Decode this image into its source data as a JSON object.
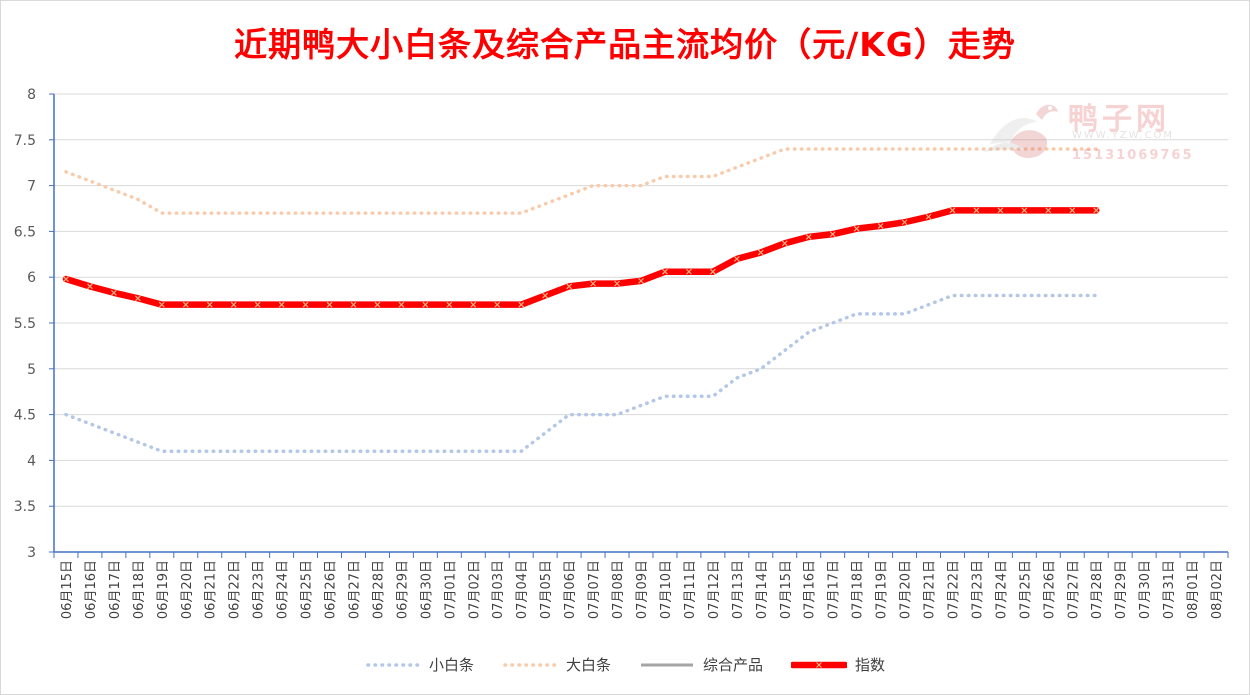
{
  "chart_data": {
    "type": "line",
    "title": "近期鸭大小白条及综合产品主流均价（元/KG）走势",
    "ylim": [
      3,
      8
    ],
    "yticks": [
      3,
      3.5,
      4,
      4.5,
      5,
      5.5,
      6,
      6.5,
      7,
      7.5,
      8
    ],
    "ytick_labels": [
      "3",
      "3.5",
      "4",
      "4.5",
      "5",
      "5.5",
      "6",
      "6.5",
      "7",
      "7.5",
      "8"
    ],
    "grid": true,
    "legend_position": "bottom",
    "categories": [
      "06月15日",
      "06月16日",
      "06月17日",
      "06月18日",
      "06月19日",
      "06月20日",
      "06月21日",
      "06月22日",
      "06月23日",
      "06月24日",
      "06月25日",
      "06月26日",
      "06月27日",
      "06月28日",
      "06月29日",
      "06月30日",
      "07月01日",
      "07月02日",
      "07月03日",
      "07月04日",
      "07月05日",
      "07月06日",
      "07月07日",
      "07月08日",
      "07月09日",
      "07月10日",
      "07月11日",
      "07月12日",
      "07月13日",
      "07月14日",
      "07月15日",
      "07月16日",
      "07月17日",
      "07月18日",
      "07月19日",
      "07月20日",
      "07月21日",
      "07月22日",
      "07月23日",
      "07月24日",
      "07月25日",
      "07月26日",
      "07月27日",
      "07月28日",
      "07月29日",
      "07月30日",
      "07月31日",
      "08月01日",
      "08月02日"
    ],
    "series": [
      {
        "name": "小白条",
        "color": "#b4c7e7",
        "style": "dotted",
        "values": [
          4.5,
          4.4,
          4.3,
          4.2,
          4.1,
          4.1,
          4.1,
          4.1,
          4.1,
          4.1,
          4.1,
          4.1,
          4.1,
          4.1,
          4.1,
          4.1,
          4.1,
          4.1,
          4.1,
          4.1,
          4.3,
          4.5,
          4.5,
          4.5,
          4.6,
          4.7,
          4.7,
          4.7,
          4.9,
          5.0,
          5.2,
          5.4,
          5.5,
          5.6,
          5.6,
          5.6,
          5.7,
          5.8,
          5.8,
          5.8,
          5.8,
          5.8,
          5.8,
          5.8,
          null,
          null,
          null,
          null,
          null
        ]
      },
      {
        "name": "大白条",
        "color": "#f8cbad",
        "style": "dotted",
        "values": [
          7.15,
          7.05,
          6.95,
          6.85,
          6.7,
          6.7,
          6.7,
          6.7,
          6.7,
          6.7,
          6.7,
          6.7,
          6.7,
          6.7,
          6.7,
          6.7,
          6.7,
          6.7,
          6.7,
          6.7,
          6.8,
          6.9,
          7.0,
          7.0,
          7.0,
          7.1,
          7.1,
          7.1,
          7.2,
          7.3,
          7.4,
          7.4,
          7.4,
          7.4,
          7.4,
          7.4,
          7.4,
          7.4,
          7.4,
          7.4,
          7.4,
          7.4,
          7.4,
          7.4,
          null,
          null,
          null,
          null,
          null
        ]
      },
      {
        "name": "综合产品",
        "color": "#a5a5a5",
        "style": "solid",
        "values": [
          null,
          null,
          null,
          null,
          null,
          null,
          null,
          null,
          null,
          null,
          null,
          null,
          null,
          null,
          null,
          null,
          null,
          null,
          null,
          null,
          null,
          null,
          null,
          null,
          null,
          null,
          null,
          null,
          null,
          null,
          null,
          null,
          null,
          null,
          null,
          null,
          null,
          null,
          null,
          null,
          null,
          null,
          null,
          null,
          null,
          null,
          null,
          null,
          null
        ]
      },
      {
        "name": "指数",
        "color": "#ff0000",
        "style": "thick-marker",
        "values": [
          5.98,
          5.9,
          5.83,
          5.77,
          5.7,
          5.7,
          5.7,
          5.7,
          5.7,
          5.7,
          5.7,
          5.7,
          5.7,
          5.7,
          5.7,
          5.7,
          5.7,
          5.7,
          5.7,
          5.7,
          5.8,
          5.9,
          5.93,
          5.93,
          5.96,
          6.06,
          6.06,
          6.06,
          6.2,
          6.27,
          6.37,
          6.44,
          6.47,
          6.53,
          6.56,
          6.6,
          6.66,
          6.73,
          6.73,
          6.73,
          6.73,
          6.73,
          6.73,
          6.73,
          null,
          null,
          null,
          null,
          null
        ]
      }
    ]
  },
  "watermark": {
    "brand": "鸭子网",
    "phone": "15131069765",
    "icon": "duck-logo-icon"
  }
}
